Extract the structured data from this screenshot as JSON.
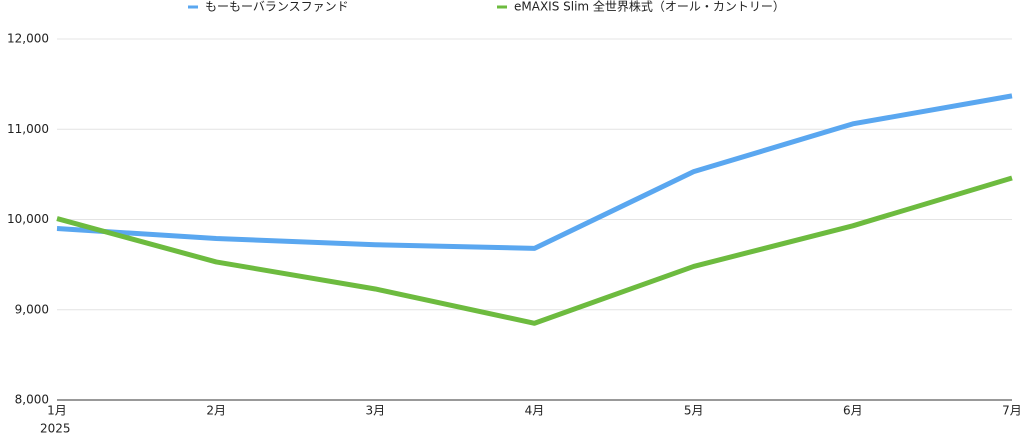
{
  "chart_data": {
    "type": "line",
    "categories": [
      "1月",
      "2月",
      "3月",
      "4月",
      "5月",
      "6月",
      "7月"
    ],
    "year_label": "2025",
    "series": [
      {
        "name": "もーもーバランスファンド",
        "color": "#5aa7f0",
        "values": [
          9900,
          9790,
          9720,
          9680,
          10530,
          11060,
          11370
        ]
      },
      {
        "name": "eMAXIS Slim 全世界株式（オール・カントリー）",
        "color": "#6dbb3f",
        "values": [
          10010,
          9530,
          9230,
          8850,
          9480,
          9930,
          10460
        ]
      }
    ],
    "ylim": [
      8000,
      12000
    ],
    "yticks": [
      {
        "value": 8000,
        "label": "8,000"
      },
      {
        "value": 9000,
        "label": "9,000"
      },
      {
        "value": 10000,
        "label": "10,000"
      },
      {
        "value": 11000,
        "label": "11,000"
      },
      {
        "value": 12000,
        "label": "12,000"
      }
    ],
    "grid": true
  }
}
